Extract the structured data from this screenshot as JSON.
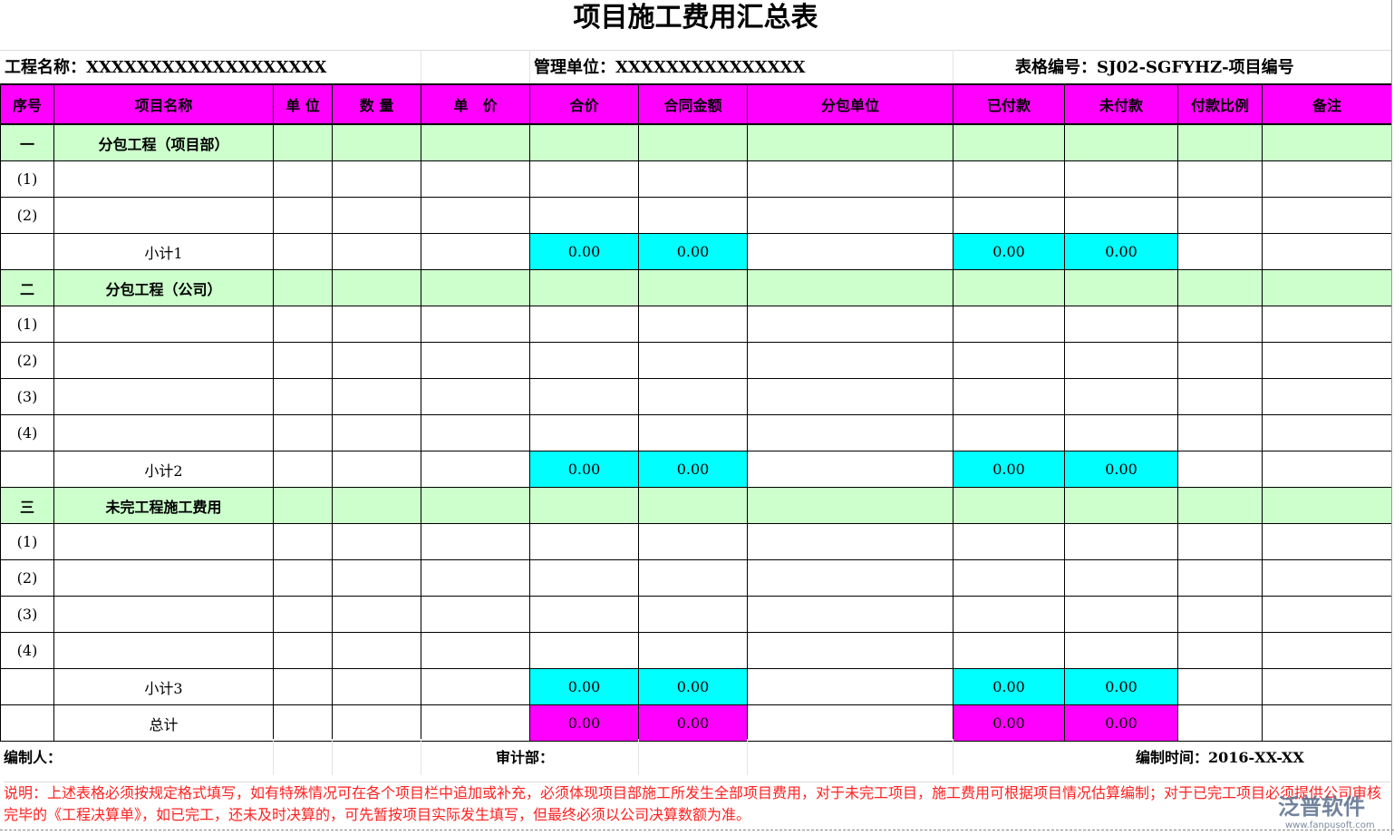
{
  "title": "项目施工费用汇总表",
  "info": {
    "project_name": "工程名称：XXXXXXXXXXXXXXXXXXX",
    "management_unit": "管理单位：XXXXXXXXXXXXXXX",
    "form_number": "表格编号：SJ02-SGFYHZ-项目编号"
  },
  "columns": [
    "序号",
    "项目名称",
    "单 位",
    "数 量",
    "单　价",
    "合价",
    "合同金额",
    "分包单位",
    "已付款",
    "未付款",
    "付款比例",
    "备注"
  ],
  "rows": [
    {
      "type": "section",
      "no": "一",
      "name": "分包工程（项目部）"
    },
    {
      "type": "item",
      "no": "(1)"
    },
    {
      "type": "item",
      "no": "(2)"
    },
    {
      "type": "subtotal",
      "name": "小计1",
      "total_price": "0.00",
      "contract_amount": "0.00",
      "paid": "0.00",
      "unpaid": "0.00"
    },
    {
      "type": "section",
      "no": "二",
      "name": "分包工程（公司）"
    },
    {
      "type": "item",
      "no": "(1)"
    },
    {
      "type": "item",
      "no": "(2)"
    },
    {
      "type": "item",
      "no": "(3)"
    },
    {
      "type": "item",
      "no": "(4)"
    },
    {
      "type": "subtotal",
      "name": "小计2",
      "total_price": "0.00",
      "contract_amount": "0.00",
      "paid": "0.00",
      "unpaid": "0.00"
    },
    {
      "type": "section",
      "no": "三",
      "name": "未完工程施工费用"
    },
    {
      "type": "item",
      "no": "(1)"
    },
    {
      "type": "item",
      "no": "(2)"
    },
    {
      "type": "item",
      "no": "(3)"
    },
    {
      "type": "item",
      "no": "(4)"
    },
    {
      "type": "subtotal",
      "name": "小计3",
      "total_price": "0.00",
      "contract_amount": "0.00",
      "paid": "0.00",
      "unpaid": "0.00"
    },
    {
      "type": "total",
      "name": "总计",
      "total_price": "0.00",
      "contract_amount": "0.00",
      "paid": "0.00",
      "unpaid": "0.00"
    }
  ],
  "footer": {
    "preparer": "编制人：",
    "audit": "审计部：",
    "date": "编制时间：2016-XX-XX"
  },
  "note": "说明：上述表格必须按规定格式填写，如有特殊情况可在各个项目栏中追加或补充，必须体现项目部施工所发生全部项目费用，对于未完工项目，施工费用可根据项目情况估算编制；对于已完工项目必须提供公司审核完毕的《工程决算单》，如已完工，还未及时决算的，可先暂按项目实际发生填写，但最终必须以公司决算数额为准。",
  "watermark": {
    "brand": "泛普软件",
    "url": "www.fanpusoft.com"
  },
  "colors": {
    "header": "#ff00ff",
    "section": "#ccffcc",
    "subtotal": "#00ffff",
    "total": "#ff00ff",
    "note": "#ff2020"
  }
}
